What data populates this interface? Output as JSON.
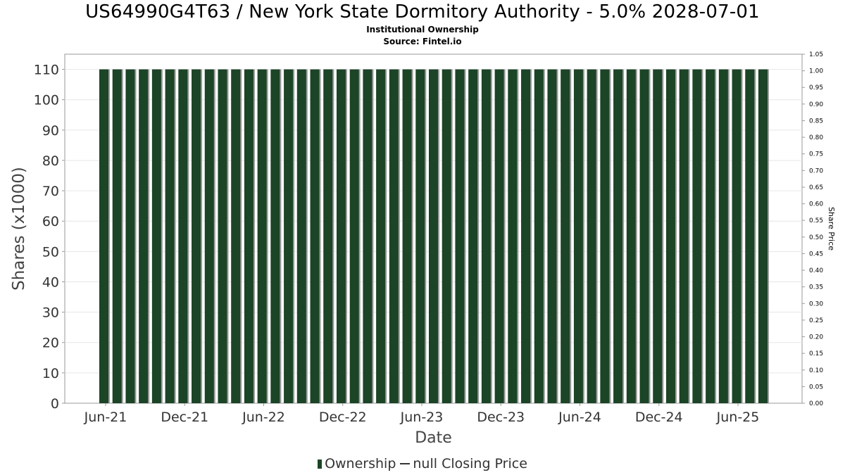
{
  "header": {
    "title": "US64990G4T63 / New York State Dormitory Authority - 5.0% 2028-07-01",
    "subtitle": "Institutional Ownership",
    "source": "Source: Fintel.io"
  },
  "legend": {
    "ownership_label": "Ownership",
    "price_label": "null Closing Price"
  },
  "colors": {
    "bar_fill": "#1c4427",
    "bar_shadow": "#9a9a9a",
    "grid": "#e6e6e6",
    "plot_border": "#999999"
  },
  "chart_data": {
    "type": "bar",
    "title": "US64990G4T63 / New York State Dormitory Authority - 5.0% 2028-07-01",
    "xlabel": "Date",
    "ylabel": "Shares (x1000)",
    "y2label": "Share Price",
    "ylim": [
      0,
      115
    ],
    "y2lim": [
      0,
      1.05
    ],
    "yticks": [
      "0",
      "10",
      "20",
      "30",
      "40",
      "50",
      "60",
      "70",
      "80",
      "90",
      "100",
      "110"
    ],
    "y2ticks": [
      "0.00",
      "0.05",
      "0.10",
      "0.15",
      "0.20",
      "0.25",
      "0.30",
      "0.35",
      "0.40",
      "0.45",
      "0.50",
      "0.55",
      "0.60",
      "0.65",
      "0.70",
      "0.75",
      "0.80",
      "0.85",
      "0.90",
      "0.95",
      "1.00",
      "1.05"
    ],
    "xticks": [
      "Jun-21",
      "Dec-21",
      "Jun-22",
      "Dec-22",
      "Jun-23",
      "Dec-23",
      "Jun-24",
      "Dec-24",
      "Jun-25"
    ],
    "grid": true,
    "legend_position": "bottom",
    "series": [
      {
        "name": "Ownership",
        "values": [
          110,
          110,
          110,
          110,
          110,
          110,
          110,
          110,
          110,
          110,
          110,
          110,
          110,
          110,
          110,
          110,
          110,
          110,
          110,
          110,
          110,
          110,
          110,
          110,
          110,
          110,
          110,
          110,
          110,
          110,
          110,
          110,
          110,
          110,
          110,
          110,
          110,
          110,
          110,
          110,
          110,
          110,
          110,
          110,
          110,
          110,
          110,
          110,
          110,
          110,
          110
        ]
      }
    ]
  }
}
